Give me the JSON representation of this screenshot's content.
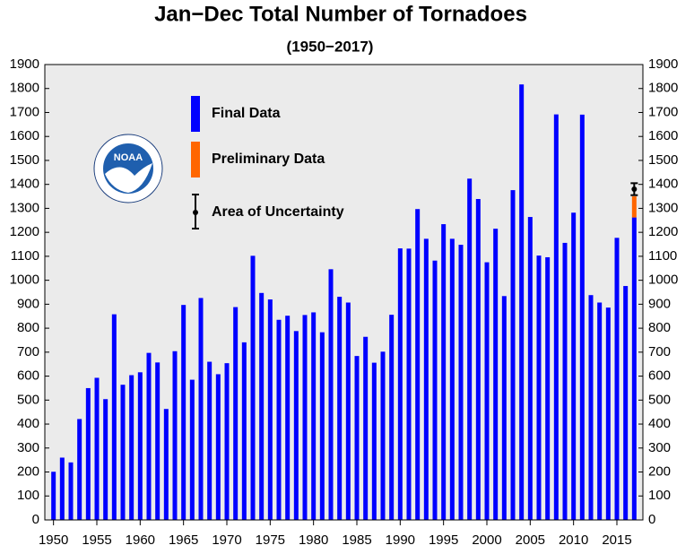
{
  "chart_data": {
    "type": "bar",
    "title": "Jan−Dec Total Number of Tornadoes",
    "subtitle": "(1950−2017)",
    "logo": "NOAA",
    "x": [
      1950,
      1951,
      1952,
      1953,
      1954,
      1955,
      1956,
      1957,
      1958,
      1959,
      1960,
      1961,
      1962,
      1963,
      1964,
      1965,
      1966,
      1967,
      1968,
      1969,
      1970,
      1971,
      1972,
      1973,
      1974,
      1975,
      1976,
      1977,
      1978,
      1979,
      1980,
      1981,
      1982,
      1983,
      1984,
      1985,
      1986,
      1987,
      1988,
      1989,
      1990,
      1991,
      1992,
      1993,
      1994,
      1995,
      1996,
      1997,
      1998,
      1999,
      2000,
      2001,
      2002,
      2003,
      2004,
      2005,
      2006,
      2007,
      2008,
      2009,
      2010,
      2011,
      2012,
      2013,
      2014,
      2015,
      2016,
      2017
    ],
    "series": [
      {
        "name": "Final Data",
        "color": "#0000ff",
        "values": [
          201,
          260,
          240,
          421,
          550,
          593,
          504,
          858,
          564,
          604,
          616,
          697,
          657,
          463,
          704,
          897,
          585,
          926,
          660,
          608,
          654,
          888,
          741,
          1102,
          947,
          920,
          835,
          852,
          788,
          855,
          866,
          783,
          1046,
          931,
          907,
          684,
          764,
          656,
          702,
          856,
          1133,
          1132,
          1297,
          1173,
          1082,
          1234,
          1173,
          1148,
          1424,
          1339,
          1075,
          1215,
          934,
          1376,
          1817,
          1264,
          1103,
          1096,
          1692,
          1156,
          1282,
          1691,
          938,
          907,
          886,
          1177,
          976,
          1262
        ]
      },
      {
        "name": "Preliminary Data",
        "color": "#ff6600",
        "values": [
          null,
          null,
          null,
          null,
          null,
          null,
          null,
          null,
          null,
          null,
          null,
          null,
          null,
          null,
          null,
          null,
          null,
          null,
          null,
          null,
          null,
          null,
          null,
          null,
          null,
          null,
          null,
          null,
          null,
          null,
          null,
          null,
          null,
          null,
          null,
          null,
          null,
          null,
          null,
          null,
          null,
          null,
          null,
          null,
          null,
          null,
          null,
          null,
          null,
          null,
          null,
          null,
          null,
          null,
          null,
          null,
          null,
          null,
          null,
          null,
          null,
          null,
          null,
          null,
          null,
          null,
          null,
          88
        ]
      }
    ],
    "error_bar": {
      "name": "Area of Uncertainty",
      "color": "#000000",
      "x": 2017,
      "value": 1380,
      "error": 25
    },
    "xlim": [
      1949,
      2018
    ],
    "xticks": [
      1950,
      1955,
      1960,
      1965,
      1970,
      1975,
      1980,
      1985,
      1990,
      1995,
      2000,
      2005,
      2010,
      2015
    ],
    "ylim": [
      0,
      1900
    ],
    "yticks": [
      0,
      100,
      200,
      300,
      400,
      500,
      600,
      700,
      800,
      900,
      1000,
      1100,
      1200,
      1300,
      1400,
      1500,
      1600,
      1700,
      1800,
      1900
    ],
    "y2lim": [
      0,
      1900
    ],
    "y2ticks": [
      0,
      100,
      200,
      300,
      400,
      500,
      600,
      700,
      800,
      900,
      1000,
      1100,
      1200,
      1300,
      1400,
      1500,
      1600,
      1700,
      1800,
      1900
    ],
    "stacked": true,
    "background": "#ebebeb"
  }
}
